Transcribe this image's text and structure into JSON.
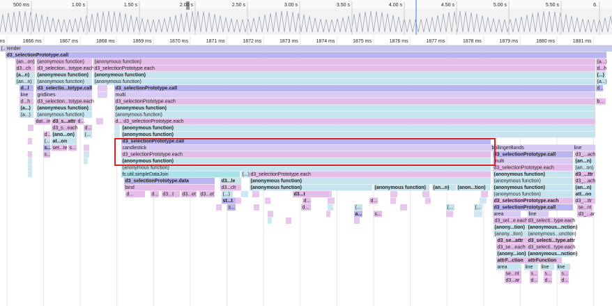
{
  "overview_ticks": [
    "500 ms",
    "1.00 s",
    "1.50 s",
    "2.00 s",
    "2.50 s",
    "3.00 s",
    "3.50 s",
    "4.00 s",
    "4.50 s",
    "5.00 s",
    "5.50 s",
    "6."
  ],
  "timeline_ticks": [
    "ms",
    "1866 ms",
    "1867 ms",
    "1868 ms",
    "1869 ms",
    "1870 ms",
    "1871 ms",
    "1872 ms",
    "1873 ms",
    "1874 ms",
    "1875 ms",
    "1876 ms",
    "1877 ms",
    "1878 ms",
    "1879 ms",
    "1880 ms",
    "1881 ms"
  ],
  "rows": [
    [
      "(...)",
      "render"
    ],
    [
      "d3_selectionPrototype.call"
    ],
    [
      "(an...on)",
      "(anonymous function)",
      "(anonymous function)",
      "(a...)"
    ],
    [
      "d3...ch",
      "d3_selection...totype.each",
      "d3_selectionPrototype.each",
      "d...h"
    ],
    [
      "(a...n)",
      "(anonymous function)",
      "(anonymous function)",
      "(...)"
    ],
    [
      "(an...n)",
      "(anonymous function)",
      "(anonymous function)",
      "(a...)"
    ],
    [
      "d...l",
      "d3_selectio...totype.call",
      "d3_selectionPrototype.call",
      "d..."
    ],
    [
      "line",
      "gridlines",
      "multi"
    ],
    [
      "d...h",
      "d3_selection...totype.each",
      "d3_selectionPrototype.each",
      "b..."
    ],
    [
      "(a...)",
      "(anonymous function)",
      "(anonymous function)"
    ],
    [
      "(a...)",
      "(anonymous function)",
      "(anonymous function)"
    ],
    [
      "dat...in",
      "d3_s...attr",
      "d...",
      "d... d3_selectionPrototype.each"
    ],
    [
      "d3_s...each",
      "d...",
      "(anonymous function)"
    ],
    [
      "d...",
      "(ano...on)",
      "(...",
      "(anonymous function)"
    ],
    [
      "(...",
      "at...on",
      "d3_selectionPrototype.call"
    ],
    [
      "s...",
      "set...te",
      "s...",
      "candlestick",
      "bollingerBands",
      "line"
    ],
    [
      "s...",
      "d3_selectionPrototype.each",
      "d3_selectionPrototype.call",
      "d3_...ach"
    ],
    [
      "(anonymous function)",
      "multi",
      "(an...n)"
    ],
    [
      "(anonymous function)",
      "d3_selectionPrototype.each",
      "(an...on)"
    ],
    [
      "fc.util.simpleDataJoin",
      "(...)",
      "d3_selectionPrototype.each",
      "(anonymous function)",
      "d3_...ttr"
    ],
    [
      "d3_selectionPrototype.data",
      "d3...le",
      "(anonymous function)",
      "(anonymous function)",
      "d3_...ach"
    ],
    [
      "bind",
      "d3...ch",
      "(anonymous function)",
      "(anonymous function)",
      "(an...n)",
      "(anon...tion)",
      "(anonymous function)",
      "(an...n)"
    ],
    [
      "d...",
      "d...",
      "d3...t",
      "d3...et",
      "d3...et",
      "(...)",
      "d3...t",
      "(anonymous function)",
      "att...on"
    ],
    [
      "st...t",
      "d...",
      "d...",
      "d3_selectionPrototype.each",
      "d3_...ttr"
    ],
    [
      "s...",
      "d...",
      "(...",
      "(...",
      "(...",
      "d3_selectionPrototype.call",
      "se...nt"
    ],
    [
      "a...",
      "s...",
      "area",
      "line",
      "d3_...ar"
    ],
    [
      "d3_sel...e.each",
      "d3_selecti...type.each"
    ],
    [
      "(anony...tion)",
      "(anonymous...nction)"
    ],
    [
      "(anony...tion)",
      "(anonymous...unction)"
    ],
    [
      "d3_se...attr",
      "d3_selecti...type.attr"
    ],
    [
      "d3_se...each",
      "d3_selecti...type.each"
    ],
    [
      "(anony...ion)",
      "(anonymous...nction)"
    ],
    [
      "attrF...ction",
      "attrFunction"
    ],
    [
      "area",
      "line",
      "line",
      "line"
    ],
    [
      "se...nt",
      "s...",
      "s...",
      "s..."
    ],
    [
      "d3...ar",
      "d...",
      "d...",
      "d..."
    ]
  ]
}
